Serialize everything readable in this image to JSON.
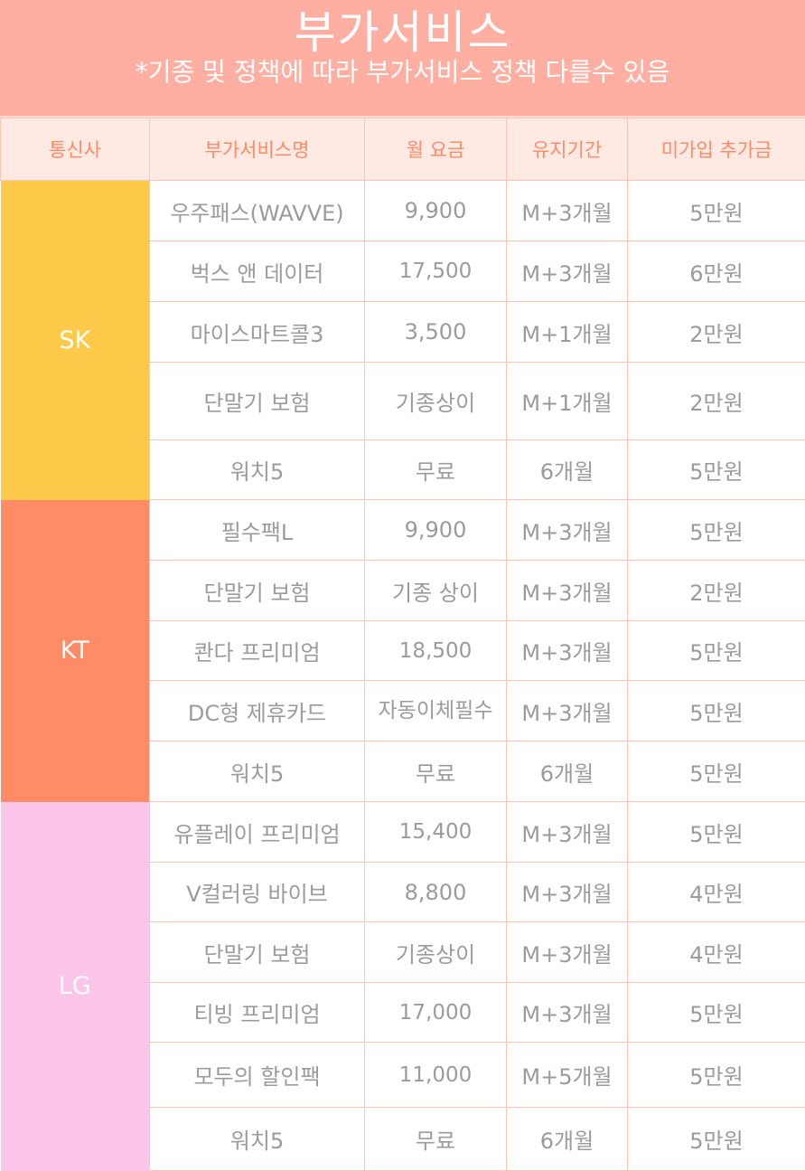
{
  "title": "부가서비스",
  "subtitle": "*기종 및 정책에 따라 부가서비스 정책 다를수 있음",
  "headers": [
    "통신사",
    "부가서비스명",
    "월 요금",
    "유지기간",
    "미가입 추가금"
  ],
  "colors": {
    "banner": "#ffafa2",
    "header_bg": "#ffe9e3",
    "header_text": "#ff8a66",
    "SK": "#ffc94a",
    "KT": "#ff8c66",
    "LG": "#fcc5ea",
    "border": "#ffc4b4"
  },
  "groups": [
    {
      "carrier": "SK",
      "rows": [
        [
          "우주패스(WAVVE)",
          "9,900",
          "M+3개월",
          "5만원"
        ],
        [
          "벅스 앤 데이터",
          "17,500",
          "M+3개월",
          "6만원"
        ],
        [
          "마이스마트콜3",
          "3,500",
          "M+1개월",
          "2만원"
        ],
        [
          "단말기 보험",
          "기종상이",
          "M+1개월",
          "2만원"
        ],
        [
          "워치5",
          "무료",
          "6개월",
          "5만원"
        ]
      ]
    },
    {
      "carrier": "KT",
      "rows": [
        [
          "필수팩L",
          "9,900",
          "M+3개월",
          "5만원"
        ],
        [
          "단말기 보험",
          "기종 상이",
          "M+3개월",
          "2만원"
        ],
        [
          "콴다 프리미엄",
          "18,500",
          "M+3개월",
          "5만원"
        ],
        [
          "DC형 제휴카드",
          "자동이체필수",
          "M+3개월",
          "5만원"
        ],
        [
          "워치5",
          "무료",
          "6개월",
          "5만원"
        ]
      ]
    },
    {
      "carrier": "LG",
      "rows": [
        [
          "유플레이 프리미엄",
          "15,400",
          "M+3개월",
          "5만원"
        ],
        [
          "V컬러링 바이브",
          "8,800",
          "M+3개월",
          "4만원"
        ],
        [
          "단말기 보험",
          "기종상이",
          "M+3개월",
          "4만원"
        ],
        [
          "티빙 프리미엄",
          "17,000",
          "M+3개월",
          "5만원"
        ],
        [
          "모두의 할인팩",
          "11,000",
          "M+5개월",
          "5만원"
        ],
        [
          "워치5",
          "무료",
          "6개월",
          "5만원"
        ]
      ]
    }
  ]
}
